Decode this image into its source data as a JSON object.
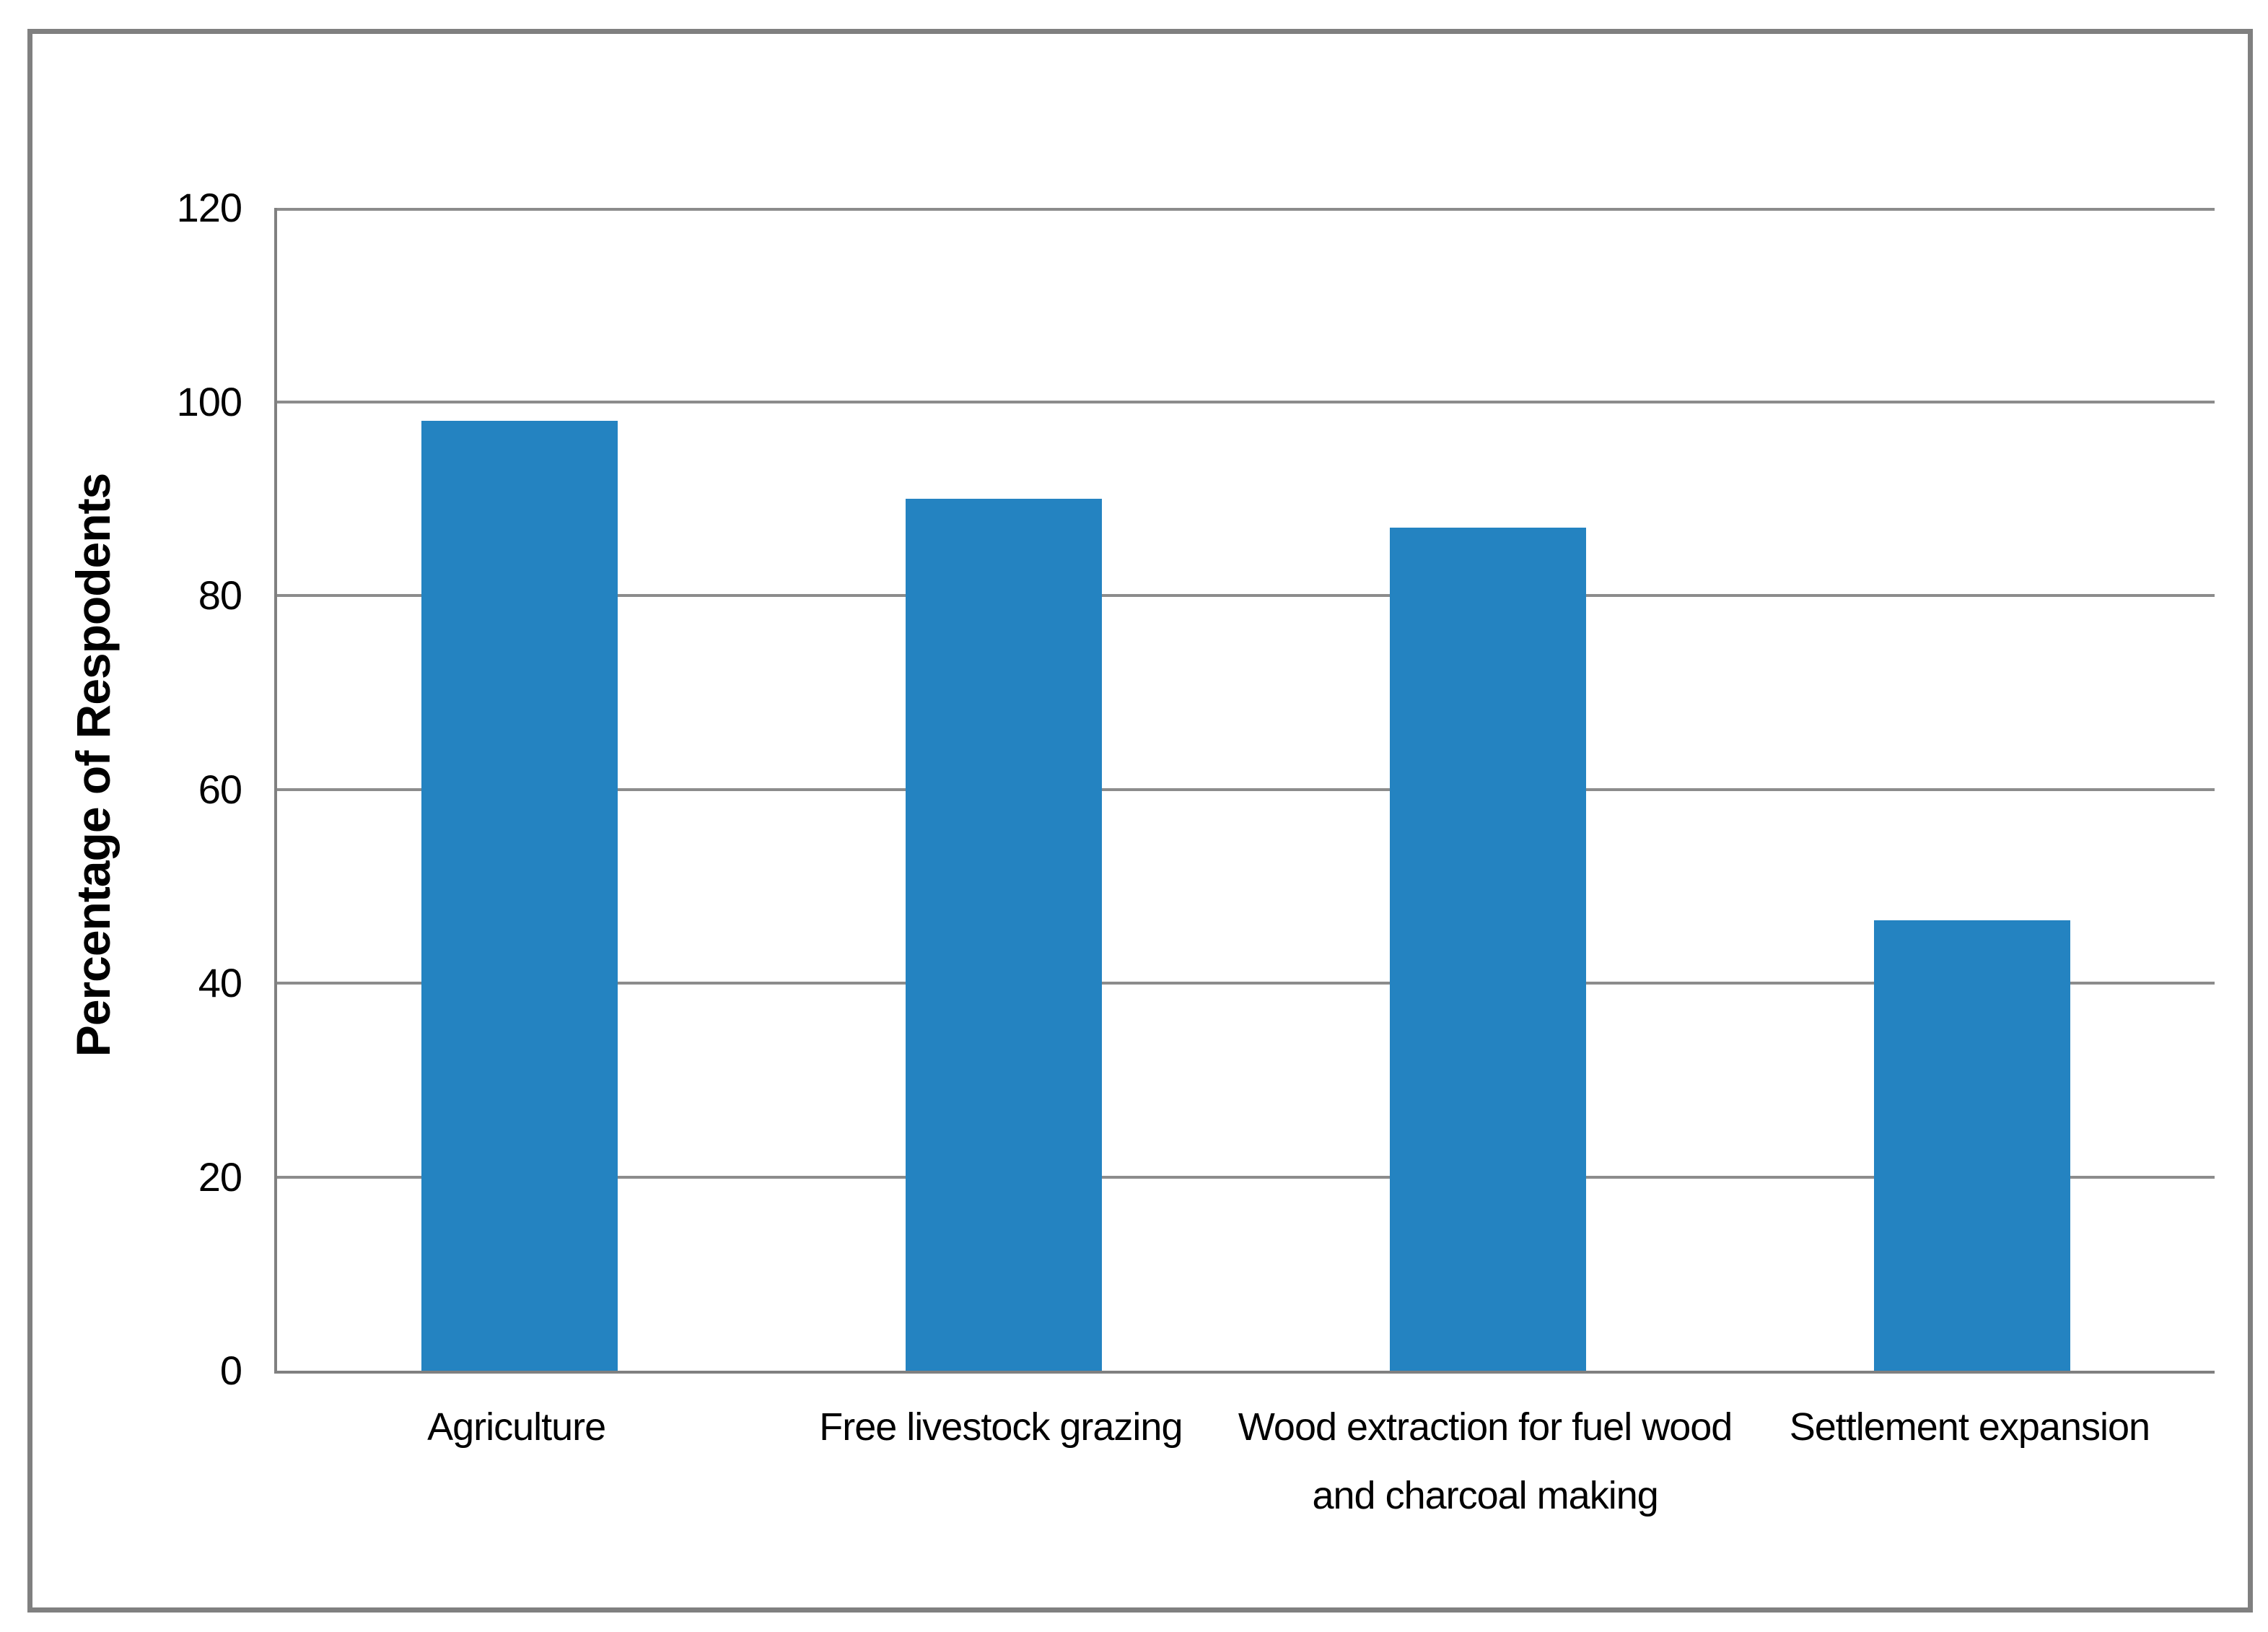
{
  "figure": {
    "background_color": "#ffffff",
    "frame_border_color": "#808080"
  },
  "chart_data": {
    "type": "bar",
    "title": "",
    "categories": [
      "Agriculture",
      "Free livestock grazing",
      "Wood extraction for fuel wood and charcoal making",
      "Settlement expansion"
    ],
    "values": [
      98,
      90,
      87,
      46.5
    ],
    "xlabel": "",
    "ylabel": "Percentage of Respodents",
    "ylim": [
      0,
      120
    ],
    "yticks": [
      0,
      20,
      40,
      60,
      80,
      100,
      120
    ],
    "grid": true,
    "legend_position": "none",
    "bar_color": "#2483c1",
    "gridline_color": "#8c8c8c",
    "axis_color": "#808080"
  }
}
